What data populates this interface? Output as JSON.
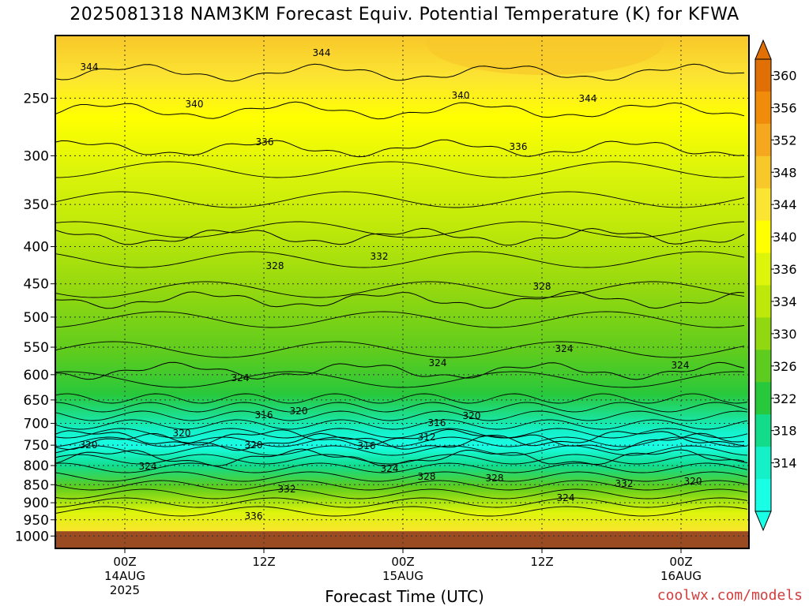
{
  "chart_data": {
    "type": "heatmap",
    "title": "2025081318 NAM3KM Forecast Equiv. Potential Temperature (K) for KFWA",
    "xlabel": "Forecast Time (UTC)",
    "ylabel": "",
    "y_scale": "log-pressure",
    "y_ticks": [
      "250",
      "300",
      "350",
      "400",
      "450",
      "500",
      "550",
      "600",
      "650",
      "700",
      "750",
      "800",
      "850",
      "900",
      "950",
      "1000"
    ],
    "x_ticks": [
      {
        "line1": "00Z",
        "line2": "14AUG",
        "line3": "2025"
      },
      {
        "line1": "12Z",
        "line2": "",
        "line3": ""
      },
      {
        "line1": "00Z",
        "line2": "15AUG",
        "line3": ""
      },
      {
        "line1": "12Z",
        "line2": "",
        "line3": ""
      },
      {
        "line1": "00Z",
        "line2": "16AUG",
        "line3": ""
      }
    ],
    "colorbar": {
      "labels": [
        "360",
        "356",
        "352",
        "348",
        "344",
        "340",
        "336",
        "334",
        "330",
        "326",
        "322",
        "318",
        "314"
      ],
      "colors": [
        "#e06f05",
        "#f08c0a",
        "#f5a81e",
        "#f8c72a",
        "#fce432",
        "#ffff00",
        "#ddf50a",
        "#bde80a",
        "#92d810",
        "#5dcc1e",
        "#28c83c",
        "#12dc8a",
        "#14f0c8",
        "#18ffe6"
      ]
    },
    "contours": [
      {
        "value": "344",
        "level": 0
      },
      {
        "value": "340",
        "level": 1
      },
      {
        "value": "336",
        "level": 2
      },
      {
        "value": "332",
        "level": 3
      },
      {
        "value": "328",
        "level": 4
      },
      {
        "value": "324",
        "level": 5
      },
      {
        "value": "320",
        "level": 6
      },
      {
        "value": "316",
        "level": 7
      },
      {
        "value": "312",
        "level": 8
      }
    ],
    "contour_labels": [
      "344",
      "344",
      "344",
      "340",
      "340",
      "336",
      "336",
      "332",
      "328",
      "328",
      "324",
      "324",
      "324",
      "324",
      "320",
      "320",
      "320",
      "316",
      "316",
      "312",
      "320",
      "320",
      "316",
      "324",
      "324",
      "328",
      "328",
      "332",
      "332",
      "320",
      "324",
      "336"
    ],
    "surface_color": "#9b4b22"
  },
  "credit": "coolwx.com/models"
}
